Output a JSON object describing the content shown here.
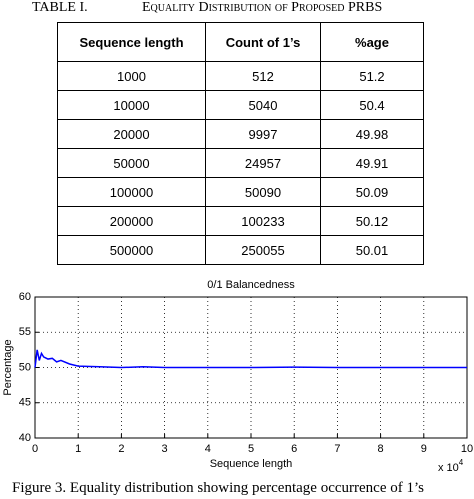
{
  "table": {
    "label": "TABLE I.",
    "title": "Equality Distribution of Proposed PRBS",
    "header": [
      "Sequence length",
      "Count of 1’s",
      "%age"
    ],
    "rows": [
      [
        "1000",
        "512",
        "51.2"
      ],
      [
        "10000",
        "5040",
        "50.4"
      ],
      [
        "20000",
        "9997",
        "49.98"
      ],
      [
        "50000",
        "24957",
        "49.91"
      ],
      [
        "100000",
        "50090",
        "50.09"
      ],
      [
        "200000",
        "100233",
        "50.12"
      ],
      [
        "500000",
        "250055",
        "50.01"
      ]
    ]
  },
  "chart_data": {
    "type": "line",
    "title": "0/1 Balancedness",
    "x_label": "Sequence length",
    "y_label": "Percentage",
    "x_multiplier": "x 10",
    "x_multiplier_exponent": "4",
    "x": [
      0,
      0.05,
      0.1,
      0.15,
      0.2,
      0.3,
      0.4,
      0.5,
      0.6,
      0.8,
      1,
      1.5,
      2,
      2.5,
      3,
      4,
      5,
      6,
      7,
      8,
      9,
      10
    ],
    "series": [
      {
        "name": "Percentage",
        "color": "#0000ff",
        "values": [
          50,
          52.5,
          51,
          52,
          51.5,
          51.2,
          51.3,
          50.8,
          51,
          50.5,
          50.2,
          50.1,
          50,
          50.1,
          50,
          50,
          50,
          50.05,
          50,
          50,
          50,
          50
        ]
      }
    ],
    "xlim": [
      0,
      10
    ],
    "xticks": [
      0,
      1,
      2,
      3,
      4,
      5,
      6,
      7,
      8,
      9,
      10
    ],
    "ylim": [
      40,
      60
    ],
    "yticks": [
      40,
      45,
      50,
      55,
      60
    ],
    "grid": true
  },
  "figure_caption": "Figure 3. Equality distribution showing percentage occurrence of 1’s"
}
